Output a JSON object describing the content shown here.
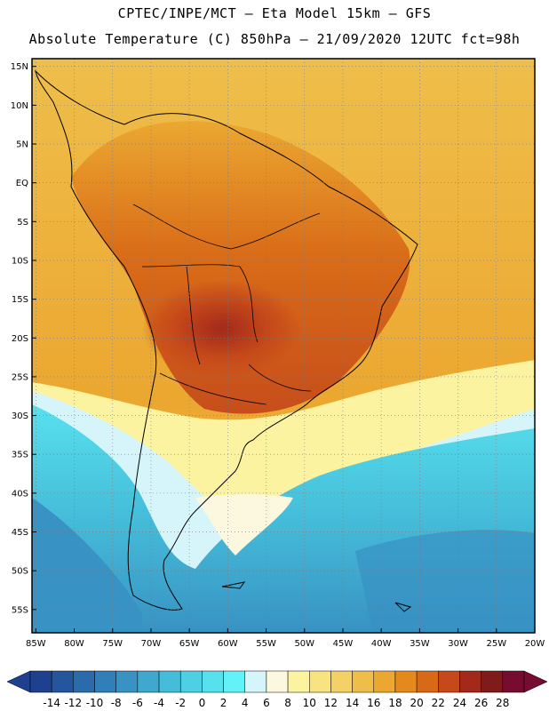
{
  "header": {
    "line1": "CPTEC/INPE/MCT –  Eta Model 15km – GFS",
    "line2": "Absolute Temperature (C) 850hPa – 21/09/2020 12UTC fct=98h"
  },
  "map": {
    "lat_labels": [
      "15N",
      "10N",
      "5N",
      "EQ",
      "5S",
      "10S",
      "15S",
      "20S",
      "25S",
      "30S",
      "35S",
      "40S",
      "45S",
      "50S",
      "55S"
    ],
    "lon_labels": [
      "85W",
      "80W",
      "75W",
      "70W",
      "65W",
      "60W",
      "55W",
      "50W",
      "45W",
      "40W",
      "35W",
      "30W",
      "25W",
      "20W"
    ],
    "lat_range": [
      -58,
      16
    ],
    "lon_range": [
      -85.5,
      -20
    ],
    "grid": "dotted, 5 degrees"
  },
  "colorbar": {
    "levels": [
      "-14",
      "-12",
      "-10",
      "-8",
      "-6",
      "-4",
      "-2",
      "0",
      "2",
      "4",
      "6",
      "8",
      "10",
      "12",
      "14",
      "16",
      "18",
      "20",
      "22",
      "24",
      "26",
      "28"
    ],
    "colors": [
      "#1f3f8f",
      "#24559d",
      "#2a6cab",
      "#317fb8",
      "#3892c3",
      "#3ea8cf",
      "#45bcd9",
      "#4ed0e4",
      "#57e1ee",
      "#63f2f7",
      "#d5f5fa",
      "#fcf8df",
      "#fbf3a0",
      "#f8e381",
      "#f4d166",
      "#efbe4a",
      "#eba730",
      "#e48a1c",
      "#d86916",
      "#c5491a",
      "#a3291b",
      "#7f1c1b",
      "#760c2f"
    ],
    "under_color": "#1f3f8f",
    "over_color": "#760c2f"
  }
}
